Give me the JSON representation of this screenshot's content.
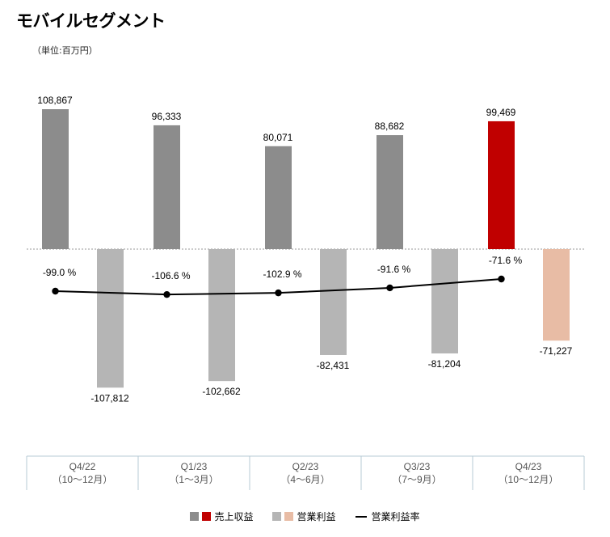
{
  "page": {
    "title": "モバイルセグメント",
    "unit": "（単位:百万円）"
  },
  "colors": {
    "revenue_past": "#8c8c8c",
    "revenue_current": "#c00000",
    "op_past": "#b5b5b5",
    "op_current": "#e8bca5",
    "margin_line": "#000000"
  },
  "chart_data": {
    "type": "bar",
    "categories": [
      "Q4/22",
      "Q1/23",
      "Q2/23",
      "Q3/23",
      "Q4/23"
    ],
    "category_sublabels": [
      "（10～12月）",
      "（1～3月）",
      "（4～6月）",
      "（7～9月）",
      "（10～12月）"
    ],
    "series": [
      {
        "name": "売上収益",
        "values": [
          108867,
          96333,
          80071,
          88682,
          99469
        ]
      },
      {
        "name": "営業利益",
        "values": [
          -107812,
          -102662,
          -82431,
          -81204,
          -71227
        ]
      },
      {
        "name": "営業利益率",
        "type": "line",
        "values": [
          -99.0,
          -106.6,
          -102.9,
          -91.6,
          -71.6
        ]
      }
    ],
    "bar_labels": {
      "revenue": [
        "108,867",
        "96,333",
        "80,071",
        "88,682",
        "99,469"
      ],
      "op": [
        "-107,812",
        "-102,662",
        "-82,431",
        "-81,204",
        "-71,227"
      ],
      "margin": [
        "-99.0 %",
        "-106.6 %",
        "-102.9 %",
        "-91.6 %",
        "-71.6 %"
      ]
    },
    "highlight_index": 4,
    "ylim": [
      -140000,
      130000
    ],
    "legend_position": "bottom"
  },
  "legend": {
    "revenue": "売上収益",
    "op": "営業利益",
    "margin": "営業利益率"
  }
}
